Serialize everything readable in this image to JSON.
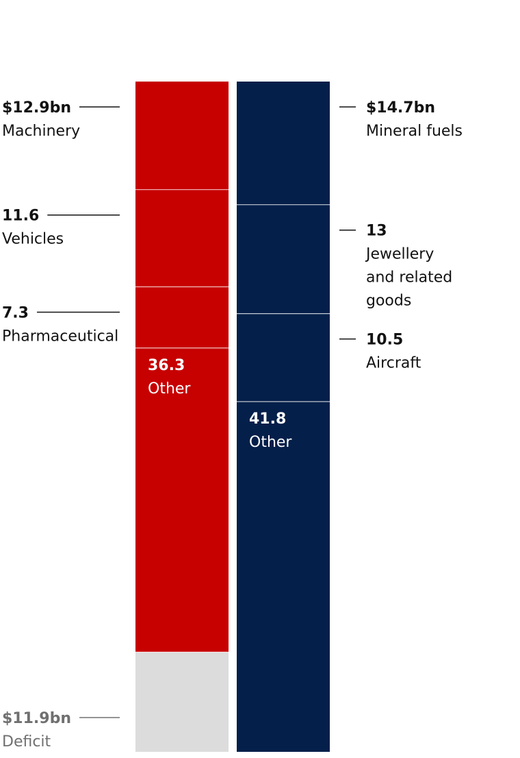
{
  "chart_data": {
    "type": "stacked-bar",
    "title": "",
    "bars": [
      {
        "name": "",
        "color": "#c70000",
        "segments": [
          {
            "value": 12.9,
            "value_label": "$12.9bn",
            "label": [
              "Machinery"
            ]
          },
          {
            "value": 11.6,
            "value_label": "11.6",
            "label": [
              "Vehicles"
            ]
          },
          {
            "value": 7.3,
            "value_label": "7.3",
            "label": [
              "Pharmaceutical"
            ]
          },
          {
            "value": 36.3,
            "value_label": "36.3",
            "label": [
              "Other"
            ]
          },
          {
            "value": 11.9,
            "value_label": "$11.9bn",
            "label": [
              "Deficit"
            ],
            "color": "#dcdcdc"
          }
        ]
      },
      {
        "name": "",
        "color": "#041f4a",
        "segments": [
          {
            "value": 14.7,
            "value_label": "$14.7bn",
            "label": [
              "Mineral fuels"
            ]
          },
          {
            "value": 13,
            "value_label": "13",
            "label": [
              "Jewellery",
              "and related",
              "goods"
            ]
          },
          {
            "value": 10.5,
            "value_label": "10.5",
            "label": [
              "Aircraft"
            ]
          },
          {
            "value": 41.8,
            "value_label": "41.8",
            "label": [
              "Other"
            ]
          }
        ]
      }
    ],
    "colors": {
      "text": "#121212",
      "deficit_text": "#707070",
      "inside_text": "#ffffff",
      "divider": "#ffffff"
    }
  }
}
